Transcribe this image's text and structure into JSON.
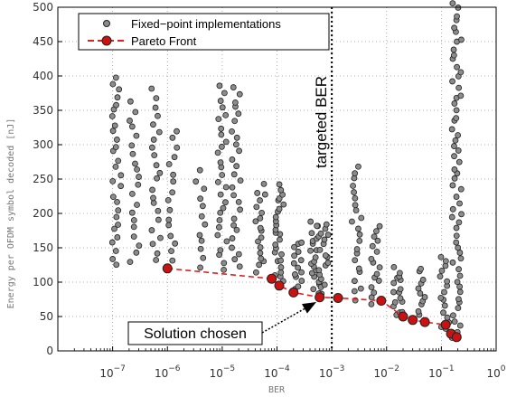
{
  "chart_data": {
    "type": "scatter",
    "xlabel": "BER",
    "ylabel": "Energy per OFDM symbol decoded [nJ]",
    "xscale": "log",
    "x_exponent_range": [
      -8,
      0
    ],
    "ylim": [
      0,
      500
    ],
    "y_ticks": [
      0,
      50,
      100,
      150,
      200,
      250,
      300,
      350,
      400,
      450,
      500
    ],
    "x_tick_base": "10",
    "x_tick_exponents": [
      "−7",
      "−6",
      "−5",
      "−4",
      "−3",
      "−2",
      "−1",
      "0"
    ],
    "grid": true,
    "legend_placement": "top-left",
    "colors": {
      "fixed_point": "#8c8c8c",
      "pareto": "#cc1111",
      "pareto_line": "#dd2222"
    },
    "series": [
      {
        "name": "Fixed−point implementations",
        "marker": "circle",
        "color": "#8c8c8c",
        "clusters": [
          {
            "x_log": -6.93,
            "y_from": 125,
            "y_to": 400,
            "count": 28
          },
          {
            "x_log": -6.6,
            "y_from": 130,
            "y_to": 360,
            "count": 20
          },
          {
            "x_log": -6.2,
            "y_from": 130,
            "y_to": 380,
            "count": 22
          },
          {
            "x_log": -5.9,
            "y_from": 130,
            "y_to": 320,
            "count": 16
          },
          {
            "x_log": -5.4,
            "y_from": 120,
            "y_to": 260,
            "count": 12
          },
          {
            "x_log": -5.0,
            "y_from": 120,
            "y_to": 385,
            "count": 28
          },
          {
            "x_log": -4.75,
            "y_from": 120,
            "y_to": 385,
            "count": 26
          },
          {
            "x_log": -4.3,
            "y_from": 115,
            "y_to": 240,
            "count": 18
          },
          {
            "x_log": -3.95,
            "y_from": 100,
            "y_to": 240,
            "count": 26
          },
          {
            "x_log": -3.6,
            "y_from": 90,
            "y_to": 160,
            "count": 14
          },
          {
            "x_log": -3.3,
            "y_from": 80,
            "y_to": 190,
            "count": 22
          },
          {
            "x_log": -3.15,
            "y_from": 80,
            "y_to": 185,
            "count": 18
          },
          {
            "x_log": -2.55,
            "y_from": 75,
            "y_to": 270,
            "count": 22
          },
          {
            "x_log": -2.2,
            "y_from": 70,
            "y_to": 180,
            "count": 16
          },
          {
            "x_log": -1.8,
            "y_from": 50,
            "y_to": 120,
            "count": 16
          },
          {
            "x_log": -1.35,
            "y_from": 45,
            "y_to": 120,
            "count": 12
          },
          {
            "x_log": -0.95,
            "y_from": 30,
            "y_to": 135,
            "count": 16
          },
          {
            "x_log": -0.72,
            "y_from": 20,
            "y_to": 505,
            "count": 60
          }
        ]
      },
      {
        "name": "Pareto Front",
        "marker": "circle",
        "line": "dashed",
        "color": "#cc1111",
        "points": [
          {
            "ber": 1e-06,
            "energy": 120
          },
          {
            "ber": 8e-05,
            "energy": 105
          },
          {
            "ber": 0.00011,
            "energy": 95
          },
          {
            "ber": 0.0002,
            "energy": 85
          },
          {
            "ber": 0.0006,
            "energy": 78
          },
          {
            "ber": 0.0013,
            "energy": 77
          },
          {
            "ber": 0.008,
            "energy": 73
          },
          {
            "ber": 0.02,
            "energy": 50
          },
          {
            "ber": 0.03,
            "energy": 45
          },
          {
            "ber": 0.05,
            "energy": 42
          },
          {
            "ber": 0.12,
            "energy": 38
          },
          {
            "ber": 0.15,
            "energy": 25
          },
          {
            "ber": 0.19,
            "energy": 20
          }
        ]
      }
    ],
    "annotations": {
      "targeted_line_ber": 0.001,
      "targeted_label": "targeted BER",
      "chosen_label": "Solution chosen",
      "chosen_point": {
        "ber": 0.0006,
        "energy": 78
      }
    }
  }
}
